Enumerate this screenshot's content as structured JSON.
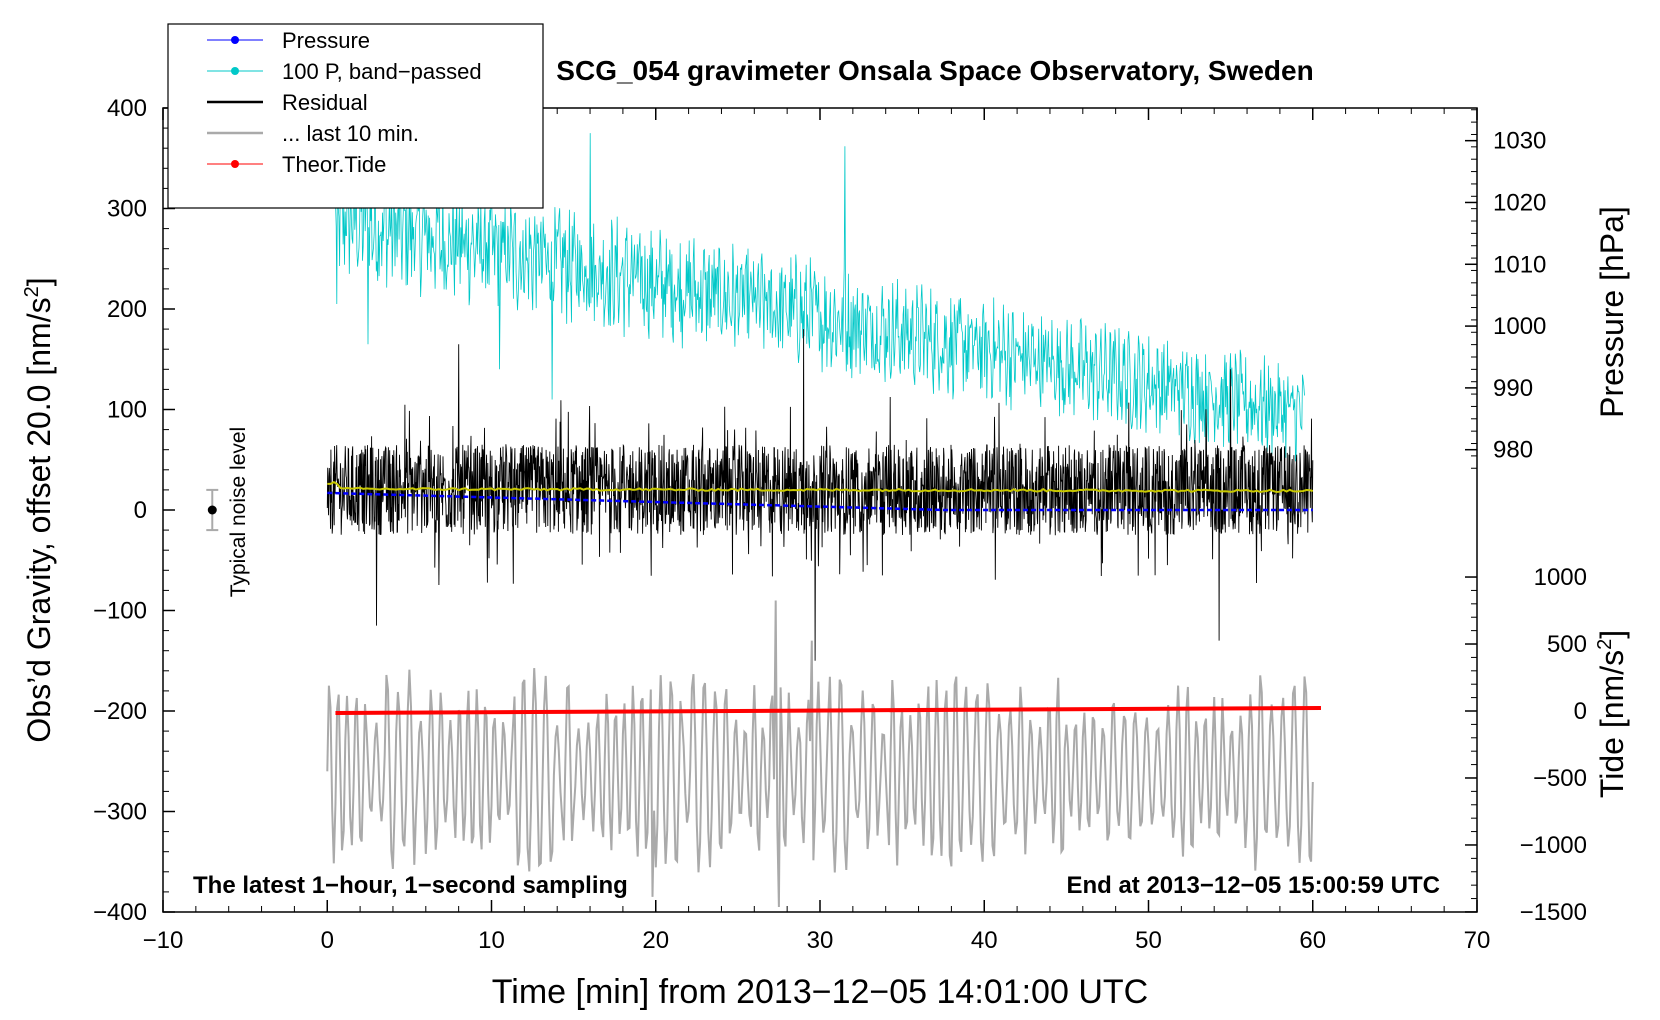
{
  "chart_data": {
    "type": "line",
    "title": "SCG_054 gravimeter Onsala Space Observatory, Sweden",
    "xlabel": "Time [min] from 2013−12−05 14:01:00 UTC",
    "ylabel_prefix": "Obs’d Gravity, offset 20.0 [nm/s",
    "ylabel_sup": "2",
    "ylabel_suffix": "]",
    "xlim": [
      -10,
      70
    ],
    "ylim": [
      -400,
      400
    ],
    "xticks": [
      -10,
      0,
      10,
      20,
      30,
      40,
      50,
      60,
      70
    ],
    "xtick_labels": [
      "−10",
      "0",
      "10",
      "20",
      "30",
      "40",
      "50",
      "60",
      "70"
    ],
    "yticks": [
      -400,
      -300,
      -200,
      -100,
      0,
      100,
      200,
      300,
      400
    ],
    "ytick_labels": [
      "−400",
      "−300",
      "−200",
      "−100",
      "0",
      "100",
      "200",
      "300",
      "400"
    ],
    "pressure_axis": {
      "label": "Pressure [hPa]",
      "ticks": [
        980,
        990,
        1000,
        1010,
        1020,
        1030
      ],
      "tick_labels": [
        "980",
        "990",
        "1000",
        "1010",
        "1020",
        "1030"
      ],
      "gravity_at_980": 60,
      "gravity_per_hPa": 6.15
    },
    "tide_axis": {
      "label_prefix": "Tide [nm/s",
      "label_sup": "2",
      "label_suffix": "]",
      "ticks": [
        -1500,
        -1000,
        -500,
        0,
        500,
        1000
      ],
      "tick_labels": [
        "−1500",
        "−1000",
        "−500",
        "0",
        "500",
        "1000"
      ],
      "gravity_at_0": -200,
      "gravity_per_unit": 0.1333
    },
    "legend": {
      "placement": "top-left",
      "entries": [
        {
          "label": "Pressure",
          "color": "#0000ff",
          "marker": true
        },
        {
          "label": "100 P, band−passed",
          "color": "#00c8c8",
          "marker": true
        },
        {
          "label": "Residual",
          "color": "#000000",
          "marker": false
        },
        {
          "label": "... last 10 min.",
          "color": "#aaaaaa",
          "marker": false
        },
        {
          "label": "Theor.Tide",
          "color": "#ff0000",
          "marker": true
        }
      ]
    },
    "annotations": {
      "noise_label": "Typical noise level",
      "noise_center": 0,
      "noise_halfwidth": 20,
      "noise_x": -7,
      "bottom_left": "The latest 1−hour, 1−second sampling",
      "bottom_right": "End at 2013−12−05 15:00:59 UTC"
    },
    "series": [
      {
        "name": "100 P, band−passed",
        "color": "#00c8c8",
        "x_range": [
          0.5,
          59.5
        ],
        "mean_start": 290,
        "mean_end": 95,
        "amplitude_start": 40,
        "amplitude_end": 30,
        "spikes": [
          {
            "x": 0.6,
            "y": 205
          },
          {
            "x": 2.5,
            "y": 165
          },
          {
            "x": 16,
            "y": 375
          },
          {
            "x": 31.5,
            "y": 362
          },
          {
            "x": 10.5,
            "y": 140
          },
          {
            "x": 13.7,
            "y": 110
          }
        ]
      },
      {
        "name": "Residual",
        "color": "#000000",
        "x_range": [
          0,
          60
        ],
        "mean": 20,
        "typical_range": [
          -60,
          110
        ],
        "extremes": [
          {
            "x": 8,
            "y": 165
          },
          {
            "x": 29,
            "y": 180
          },
          {
            "x": 29.7,
            "y": -150
          },
          {
            "x": 55,
            "y": 140
          },
          {
            "x": 54.3,
            "y": -130
          },
          {
            "x": 3,
            "y": -115
          }
        ]
      },
      {
        "name": "Pressure",
        "color": "#0000ff",
        "x_range": [
          0,
          60
        ],
        "y_start": 17,
        "y_end": 0
      },
      {
        "name": "Smoothed residual",
        "color": "#c8c800",
        "x_range": [
          0,
          60
        ],
        "y_start": 21,
        "y_end": 19
      },
      {
        "name": "... last 10 min.",
        "color": "#aaaaaa",
        "x_range": [
          0,
          60
        ],
        "center": -260,
        "amplitude": 70,
        "extremes": [
          {
            "x": 27.3,
            "y": -90
          },
          {
            "x": 27.5,
            "y": -395
          },
          {
            "x": 19.8,
            "y": -385
          },
          {
            "x": 29.5,
            "y": -130
          }
        ]
      },
      {
        "name": "Theor.Tide",
        "color": "#ff0000",
        "x_range": [
          0.5,
          60.5
        ],
        "y_start": -202,
        "y_end": -197
      }
    ]
  }
}
